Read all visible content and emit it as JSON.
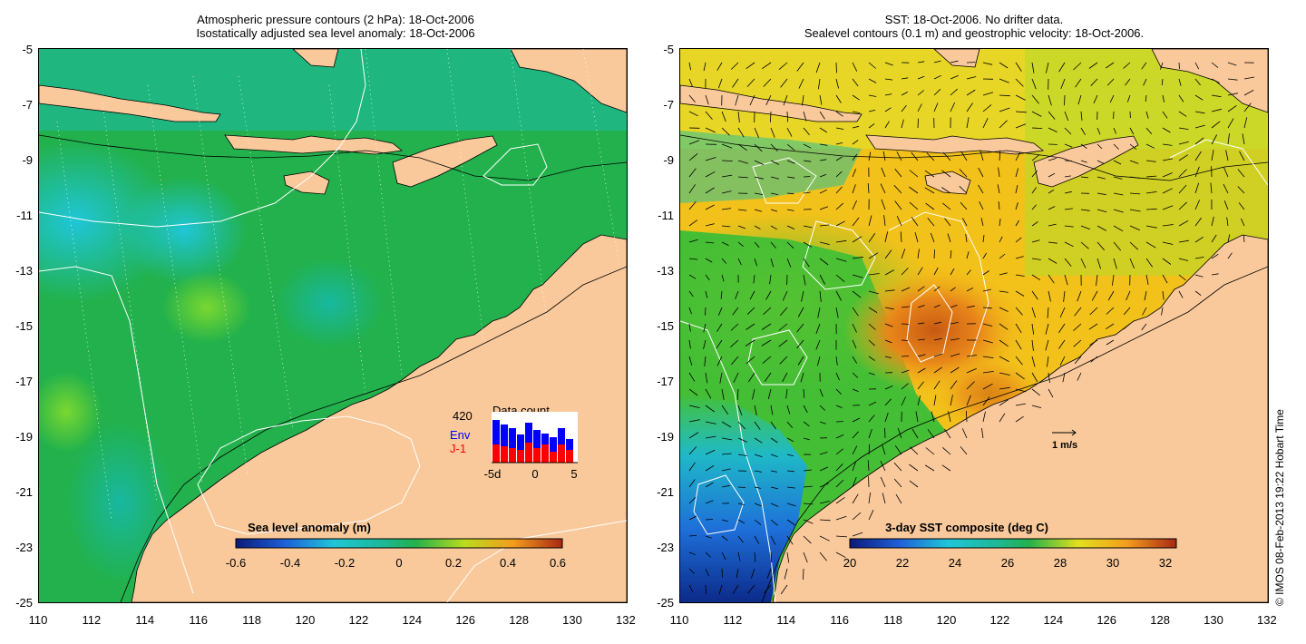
{
  "left_panel": {
    "title_line1": "Atmospheric pressure contours (2 hPa): 18-Oct-2006",
    "title_line2": "Isostatically adjusted sea level anomaly: 18-Oct-2006",
    "colorbar": {
      "title": "Sea level anomaly (m)",
      "ticks": [
        "-0.6",
        "-0.4",
        "-0.2",
        "0",
        "0.2",
        "0.4",
        "0.6"
      ]
    },
    "data_count": {
      "title": "Data count",
      "max_label": "420",
      "series": [
        {
          "name": "Env",
          "color": "#0000ff"
        },
        {
          "name": "J-1",
          "color": "#ff0000"
        }
      ],
      "x_ticks": [
        "-5d",
        "0",
        "5"
      ]
    }
  },
  "right_panel": {
    "title_line1": "SST: 18-Oct-2006. No drifter data.",
    "title_line2": "Sealevel contours (0.1 m) and geostrophic velocity: 18-Oct-2006.",
    "colorbar": {
      "title": "3-day SST composite (deg C)",
      "ticks": [
        "20",
        "22",
        "24",
        "26",
        "28",
        "30",
        "32"
      ]
    },
    "velocity_scale_label": "1 m/s"
  },
  "axes": {
    "lat_ticks": [
      "-5",
      "-7",
      "-9",
      "-11",
      "-13",
      "-15",
      "-17",
      "-19",
      "-21",
      "-23",
      "-25"
    ],
    "lon_ticks": [
      "110",
      "112",
      "114",
      "116",
      "118",
      "120",
      "122",
      "124",
      "126",
      "128",
      "130",
      "132"
    ]
  },
  "copyright": "© IMOS 08-Feb-2013 19:22 Hobart Time",
  "colors": {
    "land": "#f9c99b",
    "sla_ocean": "#22b14c",
    "sst_warm": "#f3b21a"
  }
}
